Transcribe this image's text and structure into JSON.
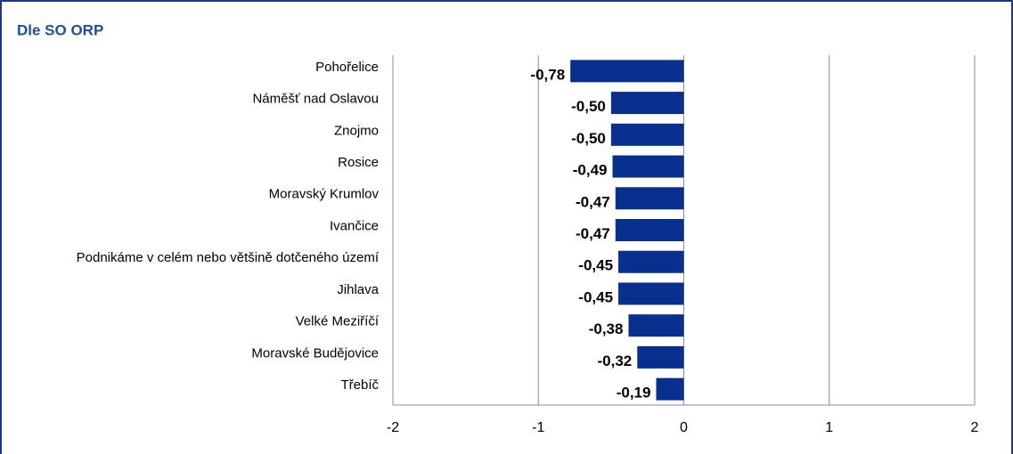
{
  "chart_data": {
    "type": "barh",
    "title": "Dle SO ORP",
    "categories": [
      "Pohořelice",
      "Náměšť nad Oslavou",
      "Znojmo",
      "Rosice",
      "Moravský Krumlov",
      "Ivančice",
      "Podnikáme v celém nebo většině dotčeného území",
      "Jihlava",
      "Velké Meziříčí",
      "Moravské Budějovice",
      "Třebíč"
    ],
    "values": [
      -0.78,
      -0.5,
      -0.5,
      -0.49,
      -0.47,
      -0.47,
      -0.45,
      -0.45,
      -0.38,
      -0.32,
      -0.19
    ],
    "value_labels": [
      "-0,78",
      "-0,50",
      "-0,50",
      "-0,49",
      "-0,47",
      "-0,47",
      "-0,45",
      "-0,45",
      "-0,38",
      "-0,32",
      "-0,19"
    ],
    "color": "#07308f",
    "xlim": [
      -2,
      2
    ],
    "xticks": [
      -2,
      -1,
      0,
      1,
      2
    ],
    "grid": true
  }
}
